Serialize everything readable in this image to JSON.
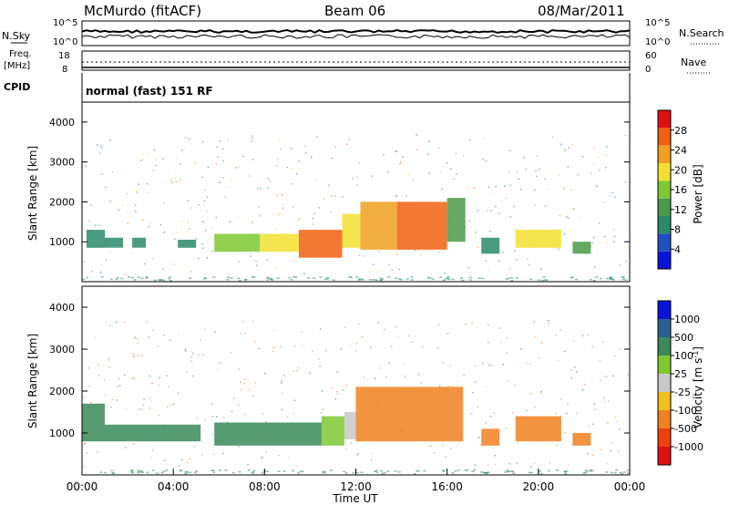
{
  "header": {
    "station": "McMurdo (fitACF)",
    "beam": "Beam 06",
    "date": "08/Mar/2011"
  },
  "top_panels": {
    "nsky_label": "N.Sky",
    "nsearch_label": "N.Search",
    "nsky_ticks": [
      "10^5",
      "10^0"
    ],
    "nsearch_ticks": [
      "10^5",
      "10^0"
    ],
    "freq_label": "Freq.",
    "freq_unit": "[MHz]",
    "freq_ticks": [
      "18",
      "8"
    ],
    "nave_label": "Nave",
    "nave_ticks": [
      "60",
      "0"
    ],
    "cpid_label": "CPID",
    "cpid_text": "normal (fast) 151 RF"
  },
  "colors": {
    "power_scale": [
      "#0a14d8",
      "#1f4fc0",
      "#2a8a6a",
      "#4a9a4a",
      "#7ec832",
      "#f2e030",
      "#f0a020",
      "#f06010",
      "#e01010"
    ],
    "velocity_scale": [
      "#e01010",
      "#f04010",
      "#f08020",
      "#f0c020",
      "#c8c8c8",
      "#7ec832",
      "#3a8a5a",
      "#2a6090",
      "#0a14d8"
    ],
    "line": "#000000"
  },
  "chart_data": [
    {
      "type": "heatmap",
      "name": "power",
      "ylabel": "Slant Range [km]",
      "xlabel": "",
      "xlim": [
        "00:00",
        "00:00"
      ],
      "ylim": [
        0,
        4500
      ],
      "y_ticks": [
        "1000",
        "2000",
        "3000",
        "4000"
      ],
      "colorbar_label": "Power [dB]",
      "colorbar_ticks": [
        "4",
        "8",
        "12",
        "16",
        "20",
        "24",
        "28"
      ],
      "colorbar_range": [
        0,
        32
      ],
      "blocks": [
        {
          "t0": 0.2,
          "t1": 1.0,
          "r0": 850,
          "r1": 1300,
          "v": 10
        },
        {
          "t0": 1.0,
          "t1": 1.8,
          "r0": 850,
          "r1": 1100,
          "v": 10
        },
        {
          "t0": 2.2,
          "t1": 2.8,
          "r0": 850,
          "r1": 1100,
          "v": 8
        },
        {
          "t0": 4.2,
          "t1": 5.0,
          "r0": 850,
          "r1": 1050,
          "v": 10
        },
        {
          "t0": 5.8,
          "t1": 7.8,
          "r0": 750,
          "r1": 1200,
          "v": 16
        },
        {
          "t0": 7.8,
          "t1": 9.5,
          "r0": 750,
          "r1": 1200,
          "v": 18
        },
        {
          "t0": 9.5,
          "t1": 11.4,
          "r0": 600,
          "r1": 1300,
          "v": 26
        },
        {
          "t0": 11.4,
          "t1": 12.2,
          "r0": 850,
          "r1": 1700,
          "v": 20
        },
        {
          "t0": 12.2,
          "t1": 13.8,
          "r0": 800,
          "r1": 2000,
          "v": 24
        },
        {
          "t0": 13.8,
          "t1": 16.0,
          "r0": 800,
          "r1": 2000,
          "v": 26
        },
        {
          "t0": 16.0,
          "t1": 16.8,
          "r0": 1000,
          "r1": 2100,
          "v": 14
        },
        {
          "t0": 17.5,
          "t1": 18.3,
          "r0": 700,
          "r1": 1100,
          "v": 10
        },
        {
          "t0": 19.0,
          "t1": 21.0,
          "r0": 850,
          "r1": 1300,
          "v": 18
        },
        {
          "t0": 21.5,
          "t1": 22.3,
          "r0": 700,
          "r1": 1000,
          "v": 12
        }
      ]
    },
    {
      "type": "heatmap",
      "name": "velocity",
      "ylabel": "Slant Range [km]",
      "xlabel": "Time UT",
      "x_ticks": [
        "00:00",
        "04:00",
        "08:00",
        "12:00",
        "16:00",
        "20:00",
        "00:00"
      ],
      "xlim": [
        "00:00",
        "00:00"
      ],
      "ylim": [
        0,
        4500
      ],
      "y_ticks": [
        "1000",
        "2000",
        "3000",
        "4000"
      ],
      "colorbar_label": "Velocity [m s",
      "colorbar_unit_sup": "-1",
      "colorbar_ticks": [
        "1000",
        "500",
        "100",
        "25",
        "-25",
        "-100",
        "-500",
        "-1000"
      ],
      "blocks": [
        {
          "t0": 0.0,
          "t1": 1.0,
          "r0": 800,
          "r1": 1700,
          "v": 100
        },
        {
          "t0": 1.0,
          "t1": 5.2,
          "r0": 800,
          "r1": 1200,
          "v": 300
        },
        {
          "t0": 5.8,
          "t1": 10.5,
          "r0": 700,
          "r1": 1250,
          "v": 300
        },
        {
          "t0": 10.5,
          "t1": 11.5,
          "r0": 700,
          "r1": 1400,
          "v": 80
        },
        {
          "t0": 11.5,
          "t1": 12.0,
          "r0": 850,
          "r1": 1500,
          "v": 0
        },
        {
          "t0": 12.0,
          "t1": 16.7,
          "r0": 800,
          "r1": 2100,
          "v": -200
        },
        {
          "t0": 17.5,
          "t1": 18.3,
          "r0": 700,
          "r1": 1100,
          "v": -200
        },
        {
          "t0": 19.0,
          "t1": 21.0,
          "r0": 800,
          "r1": 1400,
          "v": -200
        },
        {
          "t0": 21.5,
          "t1": 22.3,
          "r0": 700,
          "r1": 1000,
          "v": -150
        }
      ]
    }
  ]
}
